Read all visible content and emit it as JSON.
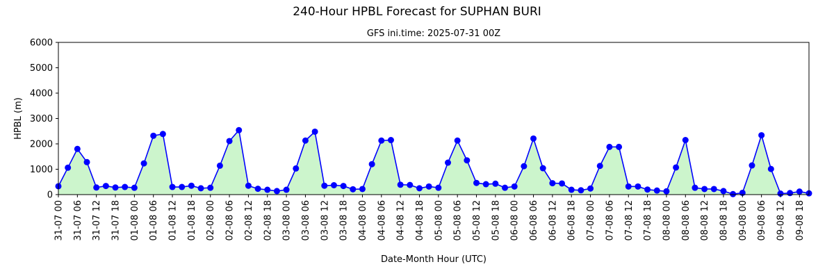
{
  "chart_data": {
    "type": "line",
    "title": "240-Hour HPBL Forecast for SUPHAN BURI",
    "subtitle": "GFS ini.time: 2025-07-31 00Z",
    "xlabel": "Date-Month Hour (UTC)",
    "ylabel": "HPBL (m)",
    "ylim": [
      0,
      6000
    ],
    "yticks": [
      0,
      1000,
      2000,
      3000,
      4000,
      5000,
      6000
    ],
    "x_step_hours": 3,
    "x_tick_every_hours": 6,
    "xtick_labels": [
      "31-07 00",
      "31-07 06",
      "31-07 12",
      "31-07 18",
      "01-08 00",
      "01-08 06",
      "01-08 12",
      "01-08 18",
      "02-08 00",
      "02-08 06",
      "02-08 12",
      "02-08 18",
      "03-08 00",
      "03-08 06",
      "03-08 12",
      "03-08 18",
      "04-08 00",
      "04-08 06",
      "04-08 12",
      "04-08 18",
      "05-08 00",
      "05-08 06",
      "05-08 12",
      "05-08 18",
      "06-08 00",
      "06-08 06",
      "06-08 12",
      "06-08 18",
      "07-08 00",
      "07-08 06",
      "07-08 12",
      "07-08 18",
      "08-08 00",
      "08-08 06",
      "08-08 12",
      "08-08 18",
      "09-08 00",
      "09-08 06",
      "09-08 12",
      "09-08 18"
    ],
    "series": [
      {
        "values": [
          330,
          1060,
          1800,
          1280,
          280,
          340,
          280,
          300,
          270,
          1230,
          2320,
          2390,
          300,
          300,
          350,
          250,
          270,
          1140,
          2110,
          2540,
          350,
          230,
          190,
          140,
          190,
          1030,
          2130,
          2480,
          350,
          370,
          340,
          210,
          220,
          1200,
          2130,
          2150,
          390,
          380,
          250,
          320,
          270,
          1260,
          2130,
          1350,
          460,
          410,
          430,
          270,
          320,
          1120,
          2210,
          1040,
          450,
          440,
          190,
          170,
          240,
          1130,
          1880,
          1880,
          320,
          320,
          200,
          160,
          130,
          1070,
          2150,
          270,
          220,
          220,
          140,
          20,
          70,
          1150,
          2340,
          1010,
          40,
          60,
          120,
          50
        ]
      }
    ],
    "colors": {
      "line": "#0000ff",
      "marker": "#0000ff",
      "fill": "#ccf5cc",
      "axis": "#000000"
    },
    "grid": false
  }
}
